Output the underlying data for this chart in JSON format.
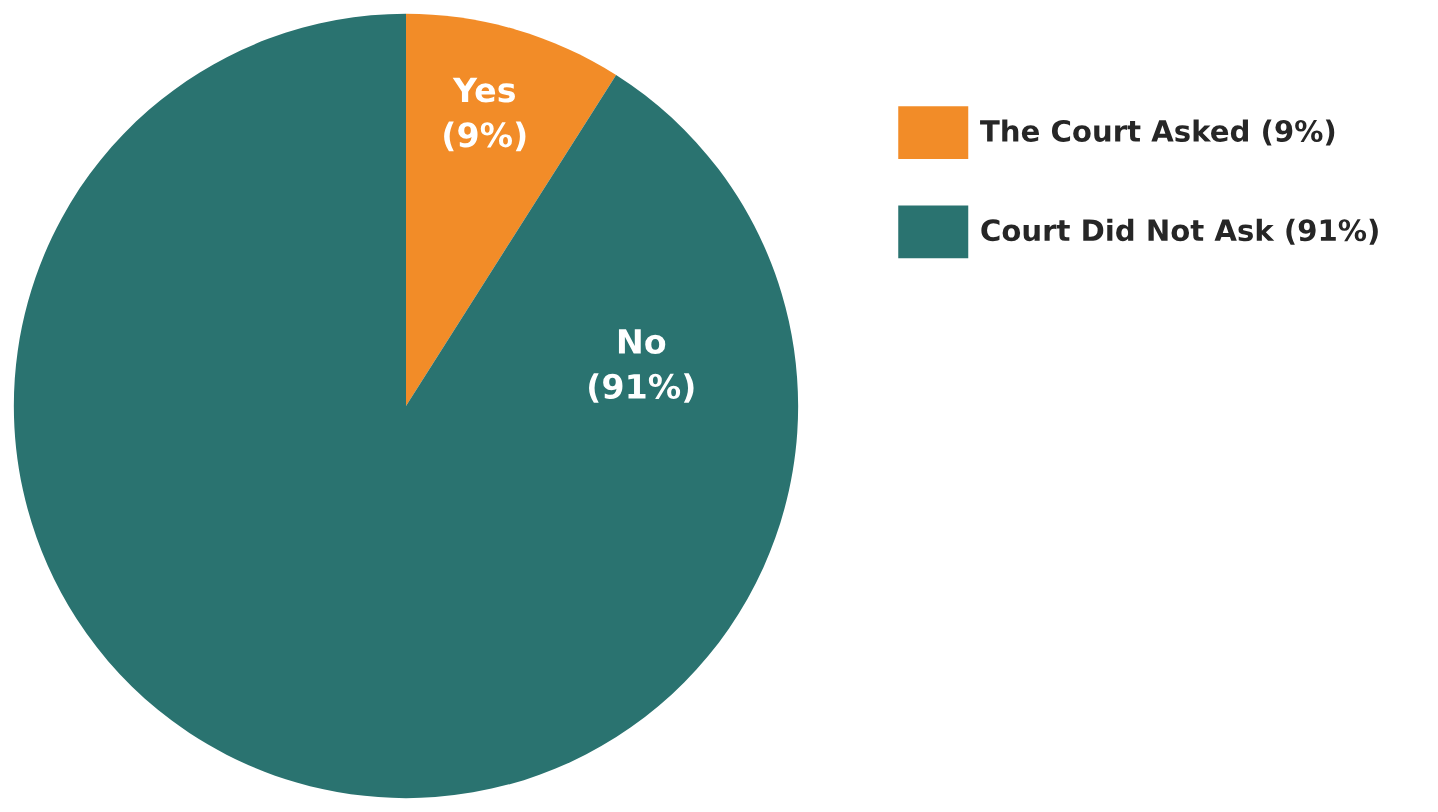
{
  "chart_data": {
    "type": "pie",
    "categories": [
      "The Court Asked (9%)",
      "Court Did Not Ask (91%)"
    ],
    "values": [
      9,
      91
    ],
    "colors": [
      "#f28c28",
      "#2a7370"
    ],
    "value_labels": [
      "Yes\n(9%)",
      "No\n(91%)"
    ],
    "legend": "right"
  }
}
